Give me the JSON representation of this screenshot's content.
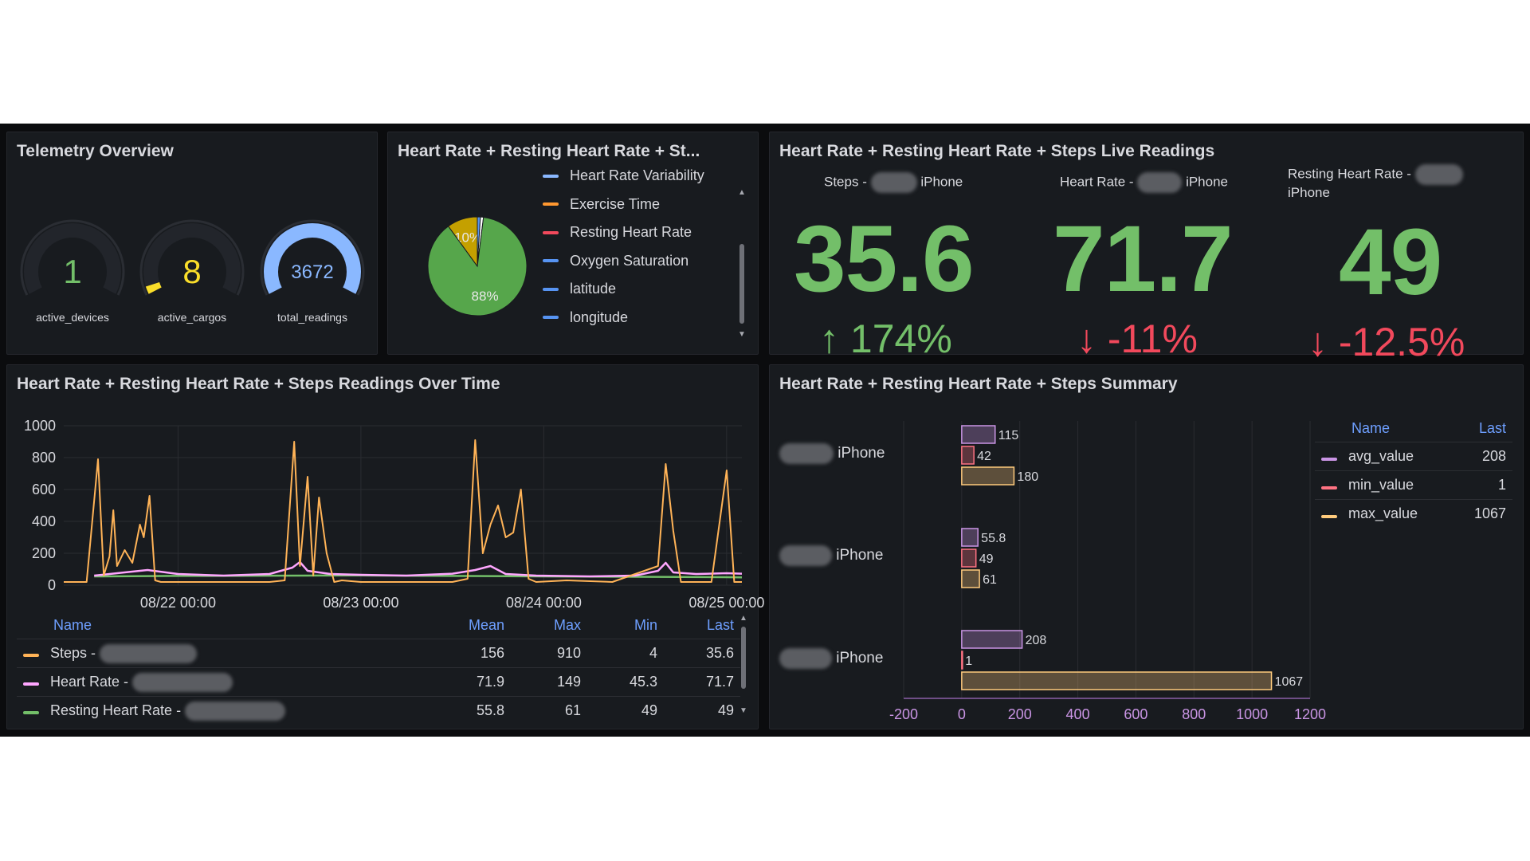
{
  "telemetry": {
    "title": "Telemetry Overview",
    "gauges": [
      {
        "value": "1",
        "label": "active_devices",
        "color": "#73bf69",
        "fill": 0
      },
      {
        "value": "8",
        "label": "active_cargos",
        "color": "#fade2a",
        "fill": 0.04
      },
      {
        "value": "3672",
        "label": "total_readings",
        "color": "#8ab8ff",
        "fill": 1
      }
    ]
  },
  "pie_panel": {
    "title": "Heart Rate + Resting Heart Rate + St...",
    "slices": [
      {
        "label": "88%",
        "percent": 88,
        "color": "#56a64b"
      },
      {
        "label": "10%",
        "percent": 10,
        "color": "#c4a000"
      },
      {
        "label": "",
        "percent": 1,
        "color": "#5794f2"
      },
      {
        "label": "",
        "percent": 1,
        "color": "#ffffff"
      }
    ],
    "legend": [
      {
        "label": "Heart Rate Variability",
        "color": "#8ab8ff"
      },
      {
        "label": "Exercise Time",
        "color": "#ff9830"
      },
      {
        "label": "Resting Heart Rate",
        "color": "#f2495c"
      },
      {
        "label": "Oxygen Saturation",
        "color": "#5794f2"
      },
      {
        "label": "latitude",
        "color": "#5794f2"
      },
      {
        "label": "longitude",
        "color": "#5794f2"
      }
    ]
  },
  "live": {
    "title": "Heart Rate + Resting Heart Rate + Steps Live Readings",
    "stats": [
      {
        "label_prefix": "Steps -",
        "label_suffix": "iPhone",
        "value": "35.6",
        "delta": "174%",
        "direction": "up",
        "delta_color": "#73bf69"
      },
      {
        "label_prefix": "Heart Rate -",
        "label_suffix": "iPhone",
        "value": "71.7",
        "delta": "-11%",
        "direction": "down",
        "delta_color": "#f2495c"
      },
      {
        "label_prefix": "Resting Heart Rate -",
        "label_suffix": "iPhone",
        "value": "49",
        "delta": "-12.5%",
        "direction": "down",
        "delta_color": "#f2495c"
      }
    ]
  },
  "timeseries": {
    "title": "Heart Rate + Resting Heart Rate + Steps Readings Over Time",
    "legend_headers": {
      "name": "Name",
      "mean": "Mean",
      "max": "Max",
      "min": "Min",
      "last": "Last"
    },
    "legend_rows": [
      {
        "name": "Steps -",
        "mean": "156",
        "max": "910",
        "min": "4",
        "last": "35.6",
        "color": "#ffb357"
      },
      {
        "name": "Heart Rate -",
        "mean": "71.9",
        "max": "149",
        "min": "45.3",
        "last": "71.7",
        "color": "#ffa6ff"
      },
      {
        "name": "Resting Heart Rate -",
        "mean": "55.8",
        "max": "61",
        "min": "49",
        "last": "49",
        "color": "#73bf69"
      }
    ]
  },
  "summary": {
    "title": "Heart Rate + Resting Heart Rate + Steps Summary",
    "groups": [
      {
        "label": "iPhone"
      },
      {
        "label": "iPhone"
      },
      {
        "label": "iPhone"
      }
    ],
    "legend_headers": {
      "name": "Name",
      "last": "Last"
    },
    "legend_rows": [
      {
        "name": "avg_value",
        "last": "208",
        "color": "#ca95e5"
      },
      {
        "name": "min_value",
        "last": "1",
        "color": "#ff7383"
      },
      {
        "name": "max_value",
        "last": "1067",
        "color": "#ffcb7d"
      }
    ]
  },
  "chart_data": [
    {
      "type": "line",
      "title": "Heart Rate + Resting Heart Rate + Steps Readings Over Time",
      "x_ticks": [
        "08/22 00:00",
        "08/23 00:00",
        "08/24 00:00",
        "08/25 00:00"
      ],
      "y_ticks": [
        "0",
        "200",
        "400",
        "600",
        "800",
        "1000"
      ],
      "ylim": [
        0,
        1000
      ],
      "x_range": [
        "08/21 09:00",
        "08/25 02:00"
      ],
      "grid": true,
      "series": [
        {
          "name": "Steps -",
          "color": "#ffb357",
          "x": [
            "08/21 09:00",
            "08/21 12:00",
            "08/21 13:30",
            "08/21 14:15",
            "08/21 15:00",
            "08/21 15:30",
            "08/21 16:00",
            "08/21 17:00",
            "08/21 18:00",
            "08/21 19:00",
            "08/21 19:30",
            "08/21 20:15",
            "08/21 21:00",
            "08/21 21:45",
            "08/21 22:15",
            "08/21 23:00",
            "08/22 00:00",
            "08/22 03:00",
            "08/22 06:00",
            "08/22 09:00",
            "08/22 12:00",
            "08/22 14:00",
            "08/22 15:15",
            "08/22 16:00",
            "08/22 17:00",
            "08/22 17:45",
            "08/22 18:30",
            "08/22 19:30",
            "08/22 20:30",
            "08/22 21:30",
            "08/23 00:00",
            "08/23 06:00",
            "08/23 12:00",
            "08/23 14:00",
            "08/23 15:00",
            "08/23 16:00",
            "08/23 17:00",
            "08/23 18:00",
            "08/23 19:00",
            "08/23 20:00",
            "08/23 21:00",
            "08/23 22:00",
            "08/23 23:00",
            "08/24 03:00",
            "08/24 09:00",
            "08/24 15:00",
            "08/24 16:00",
            "08/24 17:00",
            "08/24 18:00",
            "08/24 19:00",
            "08/24 20:00",
            "08/24 22:00",
            "08/25 00:00",
            "08/25 01:00",
            "08/25 02:00"
          ],
          "values": [
            20,
            20,
            790,
            60,
            180,
            470,
            120,
            220,
            140,
            380,
            300,
            560,
            30,
            20,
            20,
            20,
            20,
            20,
            20,
            20,
            20,
            30,
            900,
            120,
            680,
            60,
            550,
            200,
            20,
            30,
            20,
            20,
            20,
            40,
            910,
            200,
            380,
            500,
            300,
            330,
            600,
            40,
            20,
            30,
            20,
            120,
            760,
            340,
            20,
            20,
            20,
            20,
            720,
            20,
            20
          ]
        },
        {
          "name": "Heart Rate -",
          "color": "#ffa6ff",
          "x": [
            "08/21 13:00",
            "08/21 16:00",
            "08/21 20:00",
            "08/22 00:00",
            "08/22 06:00",
            "08/22 12:00",
            "08/22 15:00",
            "08/22 16:00",
            "08/22 17:00",
            "08/22 20:00",
            "08/23 00:00",
            "08/23 06:00",
            "08/23 12:00",
            "08/23 15:00",
            "08/23 17:00",
            "08/23 19:00",
            "08/23 23:00",
            "08/24 06:00",
            "08/24 12:00",
            "08/24 15:00",
            "08/24 16:00",
            "08/24 17:00",
            "08/24 20:00",
            "08/25 00:00",
            "08/25 02:00"
          ],
          "values": [
            60,
            75,
            95,
            70,
            60,
            70,
            110,
            145,
            90,
            70,
            65,
            60,
            72,
            95,
            120,
            70,
            60,
            55,
            60,
            90,
            140,
            80,
            70,
            75,
            72
          ]
        },
        {
          "name": "Resting Heart Rate -",
          "color": "#73bf69",
          "x": [
            "08/21 13:00",
            "08/22 00:00",
            "08/23 00:00",
            "08/24 00:00",
            "08/25 00:00",
            "08/25 02:00"
          ],
          "values": [
            55,
            58,
            61,
            55,
            50,
            49
          ]
        }
      ]
    },
    {
      "type": "bar",
      "title": "Heart Rate + Resting Heart Rate + Steps Summary",
      "orientation": "horizontal",
      "categories": [
        "iPhone",
        "iPhone",
        "iPhone"
      ],
      "xlim": [
        -200,
        1200
      ],
      "x_ticks": [
        "-200",
        "0",
        "200",
        "400",
        "600",
        "800",
        "1000",
        "1200"
      ],
      "series": [
        {
          "name": "avg_value",
          "color": "#ca95e5",
          "values": [
            115,
            55.8,
            208
          ]
        },
        {
          "name": "min_value",
          "color": "#ff7383",
          "values": [
            42,
            49,
            1
          ]
        },
        {
          "name": "max_value",
          "color": "#ffcb7d",
          "values": [
            180,
            61,
            1067
          ]
        }
      ]
    },
    {
      "type": "pie",
      "title": "Heart Rate + Resting Heart Rate + St...",
      "slices": [
        {
          "label": "88%",
          "value": 88
        },
        {
          "label": "10%",
          "value": 10
        },
        {
          "label": "",
          "value": 1
        },
        {
          "label": "",
          "value": 1
        }
      ]
    }
  ]
}
